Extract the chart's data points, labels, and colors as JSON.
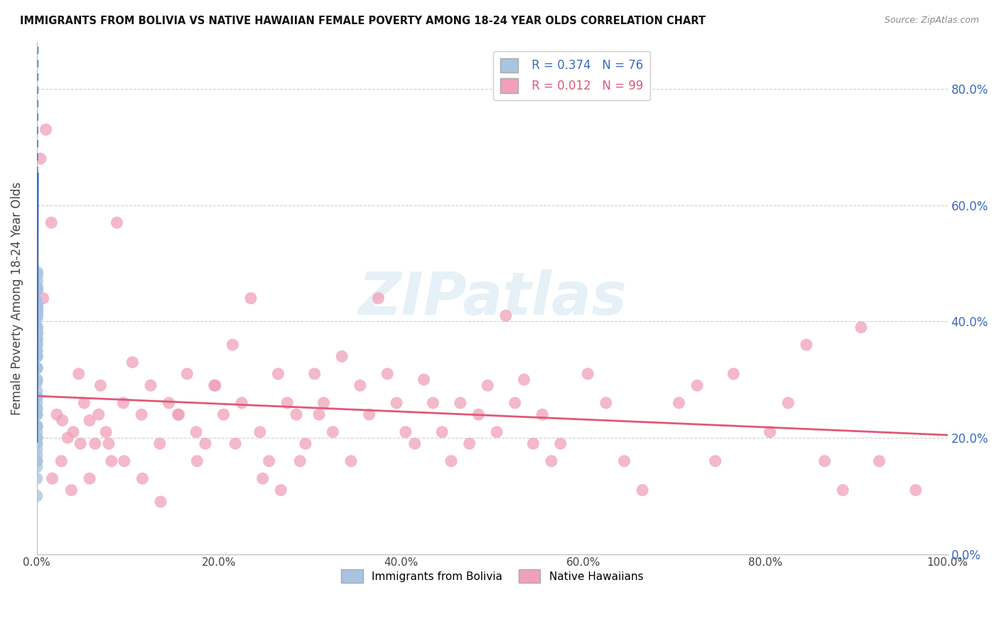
{
  "title": "IMMIGRANTS FROM BOLIVIA VS NATIVE HAWAIIAN FEMALE POVERTY AMONG 18-24 YEAR OLDS CORRELATION CHART",
  "source": "Source: ZipAtlas.com",
  "ylabel": "Female Poverty Among 18-24 Year Olds",
  "blue_R": 0.374,
  "blue_N": 76,
  "pink_R": 0.012,
  "pink_N": 99,
  "blue_color": "#a8c4e0",
  "blue_line_color": "#3a6bbf",
  "pink_color": "#f0a0b8",
  "pink_line_color": "#e05878",
  "watermark": "ZIPatlas",
  "background_color": "#ffffff",
  "grid_color": "#cccccc",
  "xlim": [
    0.0,
    1.0
  ],
  "ylim": [
    0.0,
    0.88
  ],
  "x_tick_vals": [
    0.0,
    0.2,
    0.4,
    0.6,
    0.8,
    1.0
  ],
  "y_tick_vals": [
    0.0,
    0.2,
    0.4,
    0.6,
    0.8
  ],
  "blue_scatter_x": [
    0.0002,
    0.0003,
    0.0005,
    0.0002,
    0.0003,
    0.0008,
    0.0001,
    0.0004,
    0.0003,
    0.0002,
    0.0002,
    0.0003,
    0.0002,
    0.0004,
    0.0003,
    0.0002,
    0.0006,
    0.0003,
    0.0002,
    0.0002,
    0.0004,
    0.0003,
    0.0002,
    0.0002,
    0.0003,
    0.0002,
    0.0005,
    0.0008,
    0.0003,
    0.0002,
    0.0001,
    0.0002,
    0.0003,
    0.0002,
    0.0003,
    0.0004,
    0.0002,
    0.0001,
    0.0003,
    0.0001,
    0.0002,
    0.0003,
    0.0001,
    0.0005,
    0.0002,
    0.0003,
    0.0002,
    0.0001,
    0.0003,
    0.0001,
    0.0001,
    0.0002,
    0.0003,
    0.0001,
    0.0006,
    0.0001,
    0.0003,
    0.0001,
    0.0005,
    0.0001,
    0.0001,
    0.0003,
    0.0001,
    0.0001,
    0.0002,
    0.0001,
    0.0004,
    0.0003,
    0.0001,
    0.0001,
    0.0003,
    0.0001,
    0.0001,
    0.0001,
    0.0002,
    0.0001
  ],
  "blue_scatter_y": [
    0.435,
    0.415,
    0.455,
    0.365,
    0.385,
    0.425,
    0.295,
    0.38,
    0.41,
    0.25,
    0.405,
    0.455,
    0.32,
    0.455,
    0.415,
    0.37,
    0.485,
    0.39,
    0.34,
    0.27,
    0.425,
    0.38,
    0.37,
    0.35,
    0.415,
    0.32,
    0.47,
    0.48,
    0.42,
    0.3,
    0.26,
    0.35,
    0.39,
    0.28,
    0.36,
    0.43,
    0.32,
    0.22,
    0.41,
    0.18,
    0.27,
    0.34,
    0.22,
    0.455,
    0.32,
    0.39,
    0.27,
    0.22,
    0.38,
    0.2,
    0.17,
    0.25,
    0.34,
    0.22,
    0.46,
    0.24,
    0.38,
    0.2,
    0.42,
    0.2,
    0.16,
    0.37,
    0.24,
    0.19,
    0.34,
    0.21,
    0.41,
    0.36,
    0.2,
    0.16,
    0.3,
    0.19,
    0.15,
    0.1,
    0.24,
    0.13
  ],
  "pink_scatter_x": [
    0.004,
    0.01,
    0.016,
    0.022,
    0.028,
    0.034,
    0.04,
    0.046,
    0.052,
    0.058,
    0.064,
    0.07,
    0.076,
    0.082,
    0.088,
    0.095,
    0.105,
    0.115,
    0.125,
    0.135,
    0.145,
    0.155,
    0.165,
    0.175,
    0.185,
    0.195,
    0.205,
    0.215,
    0.225,
    0.235,
    0.245,
    0.255,
    0.265,
    0.275,
    0.285,
    0.295,
    0.305,
    0.315,
    0.325,
    0.335,
    0.345,
    0.355,
    0.365,
    0.375,
    0.385,
    0.395,
    0.405,
    0.415,
    0.425,
    0.435,
    0.445,
    0.455,
    0.465,
    0.475,
    0.485,
    0.495,
    0.505,
    0.515,
    0.525,
    0.535,
    0.545,
    0.555,
    0.565,
    0.575,
    0.605,
    0.625,
    0.645,
    0.665,
    0.705,
    0.725,
    0.745,
    0.765,
    0.805,
    0.825,
    0.845,
    0.865,
    0.885,
    0.905,
    0.925,
    0.965,
    0.007,
    0.017,
    0.027,
    0.038,
    0.048,
    0.058,
    0.068,
    0.079,
    0.096,
    0.116,
    0.136,
    0.156,
    0.176,
    0.196,
    0.218,
    0.248,
    0.268,
    0.289,
    0.31
  ],
  "pink_scatter_y": [
    0.68,
    0.73,
    0.57,
    0.24,
    0.23,
    0.2,
    0.21,
    0.31,
    0.26,
    0.23,
    0.19,
    0.29,
    0.21,
    0.16,
    0.57,
    0.26,
    0.33,
    0.24,
    0.29,
    0.19,
    0.26,
    0.24,
    0.31,
    0.21,
    0.19,
    0.29,
    0.24,
    0.36,
    0.26,
    0.44,
    0.21,
    0.16,
    0.31,
    0.26,
    0.24,
    0.19,
    0.31,
    0.26,
    0.21,
    0.34,
    0.16,
    0.29,
    0.24,
    0.44,
    0.31,
    0.26,
    0.21,
    0.19,
    0.3,
    0.26,
    0.21,
    0.16,
    0.26,
    0.19,
    0.24,
    0.29,
    0.21,
    0.41,
    0.26,
    0.3,
    0.19,
    0.24,
    0.16,
    0.19,
    0.31,
    0.26,
    0.16,
    0.11,
    0.26,
    0.29,
    0.16,
    0.31,
    0.21,
    0.26,
    0.36,
    0.16,
    0.11,
    0.39,
    0.16,
    0.11,
    0.44,
    0.13,
    0.16,
    0.11,
    0.19,
    0.13,
    0.24,
    0.19,
    0.16,
    0.13,
    0.09,
    0.24,
    0.16,
    0.29,
    0.19,
    0.13,
    0.11,
    0.16,
    0.24
  ]
}
